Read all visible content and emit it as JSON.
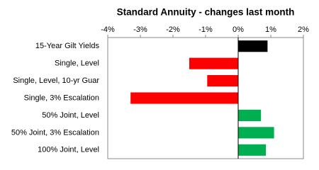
{
  "chart_data": {
    "type": "barh",
    "title": "Standard Annuity  - changes last month",
    "categories": [
      "15-Year Gilt Yields",
      "Single, Level",
      "Single, Level, 10-yr Guar",
      "Single, 3% Escalation",
      "50% Joint, Level",
      "50% Joint, 3% Escalation",
      "100% Joint, Level"
    ],
    "values": [
      0.9,
      -1.5,
      -0.95,
      -3.3,
      0.7,
      1.1,
      0.85
    ],
    "colors": [
      "#000000",
      "#ff0000",
      "#ff0000",
      "#ff0000",
      "#00b050",
      "#00b050",
      "#00b050"
    ],
    "xlim": [
      -4,
      2
    ],
    "xticks": [
      {
        "value": -4,
        "label": "-4%"
      },
      {
        "value": -3,
        "label": "-3%"
      },
      {
        "value": -2,
        "label": "-2%"
      },
      {
        "value": -1,
        "label": "-1%"
      },
      {
        "value": 0,
        "label": "0%"
      },
      {
        "value": 1,
        "label": "1%"
      },
      {
        "value": 2,
        "label": "2%"
      }
    ],
    "grid": false
  }
}
